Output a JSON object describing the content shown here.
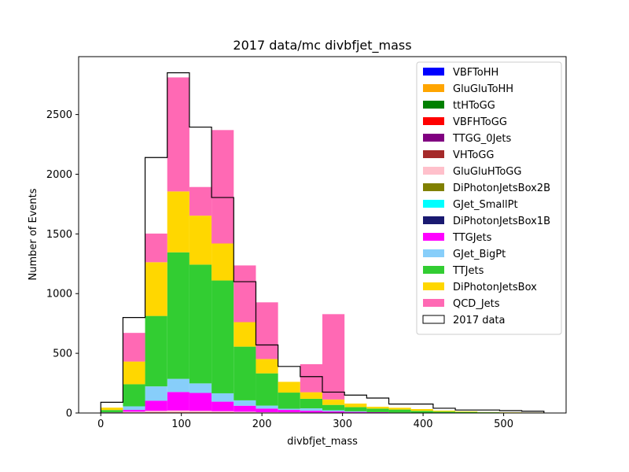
{
  "chart_data": {
    "type": "bar",
    "stacked": true,
    "title": "2017 data/mc divbfjet_mass",
    "xlabel": "divbfjet_mass",
    "ylabel": "Number of Events",
    "xlim": [
      -27.5,
      577.5
    ],
    "ylim": [
      0,
      2985
    ],
    "x_ticks": [
      0,
      100,
      200,
      300,
      400,
      500
    ],
    "y_ticks": [
      0,
      500,
      1000,
      1500,
      2000,
      2500
    ],
    "bin_edges": [
      0,
      27.5,
      55,
      82.5,
      110,
      137.5,
      165,
      192.5,
      220,
      247.5,
      275,
      302.5,
      330,
      357.5,
      385,
      412.5,
      440,
      467.5,
      495,
      522.5,
      550
    ],
    "legend_position": "upper right",
    "series": [
      {
        "name": "VBFToHH",
        "color": "#0000ff",
        "values": [
          0,
          0,
          0,
          0,
          0,
          0,
          0,
          0,
          0,
          0,
          0,
          0,
          0,
          0,
          0,
          0,
          0,
          0,
          0,
          0
        ]
      },
      {
        "name": "GluGluToHH",
        "color": "#ffa500",
        "values": [
          0,
          0,
          0,
          0,
          0,
          0,
          0,
          0,
          0,
          0,
          0,
          0,
          0,
          0,
          0,
          0,
          0,
          0,
          0,
          0
        ]
      },
      {
        "name": "ttHToGG",
        "color": "#008000",
        "values": [
          0,
          1,
          1,
          2,
          2,
          2,
          1,
          1,
          1,
          1,
          1,
          0,
          0,
          0,
          0,
          0,
          0,
          0,
          0,
          0
        ]
      },
      {
        "name": "VBFHToGG",
        "color": "#ff0000",
        "values": [
          1,
          3,
          4,
          3,
          3,
          3,
          3,
          2,
          2,
          1,
          1,
          1,
          1,
          0,
          0,
          0,
          0,
          0,
          0,
          0
        ]
      },
      {
        "name": "TTGG_0Jets",
        "color": "#800080",
        "values": [
          0,
          0,
          0,
          0,
          0,
          0,
          0,
          0,
          0,
          0,
          0,
          0,
          0,
          0,
          0,
          0,
          0,
          0,
          0,
          0
        ]
      },
      {
        "name": "VHToGG",
        "color": "#a52a2a",
        "values": [
          0,
          1,
          1,
          1,
          1,
          1,
          1,
          0,
          0,
          0,
          0,
          0,
          0,
          0,
          0,
          0,
          0,
          0,
          0,
          0
        ]
      },
      {
        "name": "GluGluHToGG",
        "color": "#ffc0cb",
        "values": [
          1,
          6,
          12,
          15,
          12,
          9,
          6,
          4,
          3,
          2,
          1,
          1,
          1,
          0,
          0,
          0,
          0,
          0,
          0,
          0
        ]
      },
      {
        "name": "DiPhotonJetsBox2B",
        "color": "#808000",
        "values": [
          0,
          0,
          0,
          0,
          0,
          0,
          0,
          0,
          0,
          0,
          0,
          0,
          0,
          0,
          0,
          0,
          0,
          0,
          0,
          0
        ]
      },
      {
        "name": "GJet_SmallPt",
        "color": "#00ffff",
        "values": [
          0,
          0,
          0,
          0,
          0,
          0,
          0,
          0,
          0,
          0,
          0,
          0,
          0,
          0,
          0,
          0,
          0,
          0,
          0,
          0
        ]
      },
      {
        "name": "DiPhotonJetsBox1B",
        "color": "#191970",
        "values": [
          0,
          0,
          0,
          0,
          0,
          0,
          0,
          0,
          0,
          0,
          0,
          0,
          0,
          0,
          0,
          0,
          0,
          0,
          0,
          0
        ]
      },
      {
        "name": "TTGJets",
        "color": "#ff00ff",
        "values": [
          3,
          15,
          85,
          155,
          150,
          80,
          50,
          30,
          20,
          15,
          10,
          7,
          5,
          4,
          3,
          2,
          1,
          1,
          1,
          1
        ]
      },
      {
        "name": "GJet_BigPt",
        "color": "#87cefa",
        "values": [
          0,
          30,
          120,
          110,
          80,
          70,
          45,
          25,
          10,
          20,
          10,
          5,
          0,
          0,
          0,
          0,
          0,
          0,
          0,
          0
        ]
      },
      {
        "name": "TTJets",
        "color": "#32cd32",
        "values": [
          20,
          185,
          590,
          1060,
          995,
          945,
          450,
          270,
          135,
          80,
          45,
          35,
          30,
          25,
          15,
          10,
          8,
          5,
          3,
          2
        ]
      },
      {
        "name": "DiPhotonJetsBox",
        "color": "#ffd700",
        "values": [
          20,
          190,
          450,
          510,
          410,
          310,
          205,
          120,
          90,
          55,
          45,
          30,
          15,
          15,
          15,
          8,
          5,
          2,
          2,
          1
        ]
      },
      {
        "name": "QCD_Jets",
        "color": "#ff69b4",
        "values": [
          0,
          240,
          240,
          955,
          240,
          950,
          475,
          475,
          0,
          235,
          715,
          0,
          0,
          0,
          0,
          0,
          0,
          0,
          0,
          0
        ]
      }
    ],
    "data_series": {
      "name": "2017 data",
      "values": [
        90,
        800,
        2140,
        2850,
        2395,
        1805,
        1100,
        570,
        390,
        305,
        175,
        150,
        125,
        75,
        75,
        40,
        25,
        25,
        20,
        15
      ]
    }
  }
}
